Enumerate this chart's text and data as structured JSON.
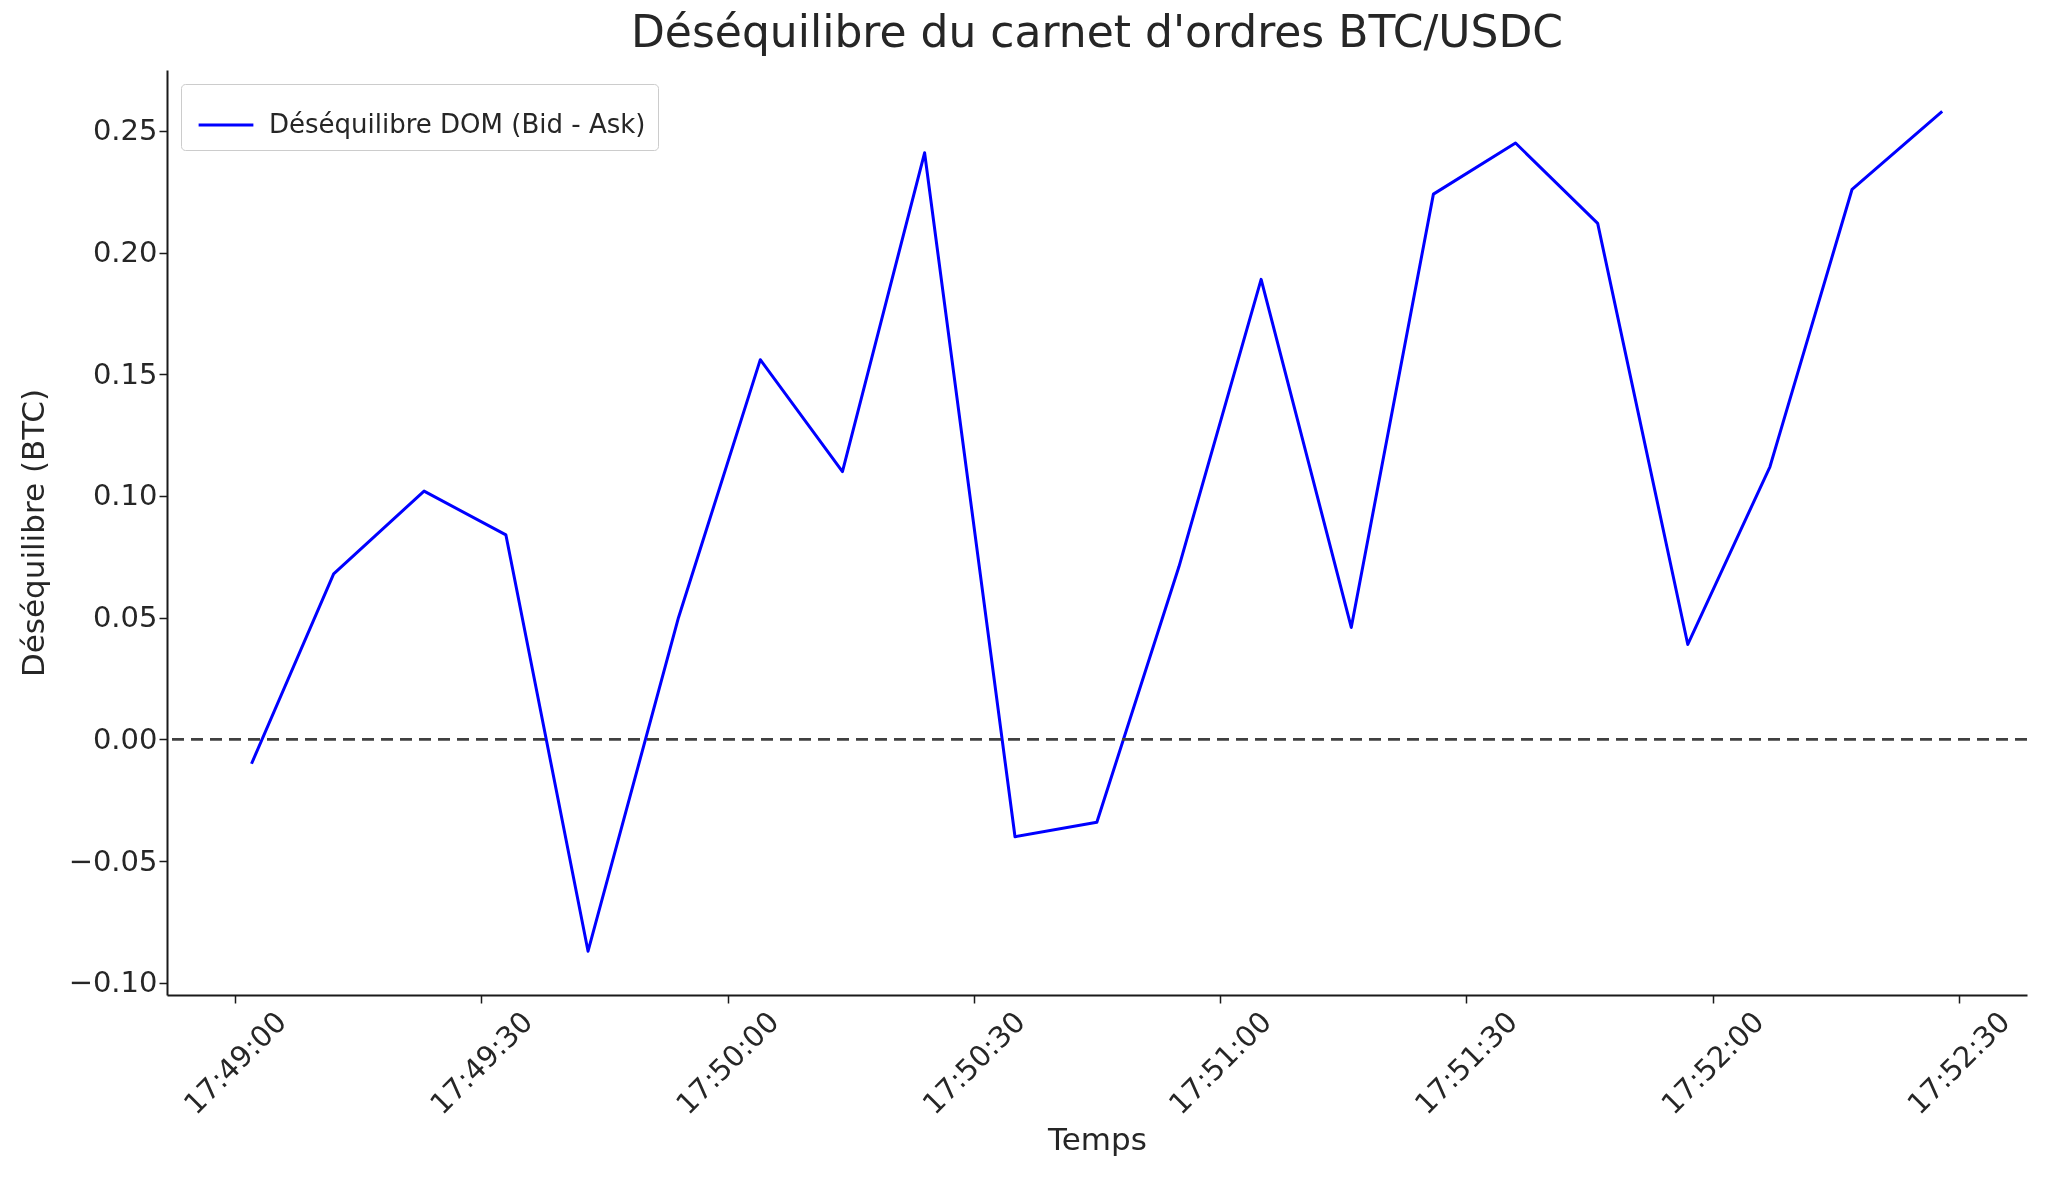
{
  "chart_data": {
    "type": "line",
    "title": "Déséquilibre du carnet d'ordres BTC/USDC",
    "xlabel": "Temps",
    "ylabel": "Déséquilibre (BTC)",
    "x": [
      17.81722,
      17.82,
      17.82306,
      17.82583,
      17.82861,
      17.83167,
      17.83444,
      17.83722,
      17.84,
      17.84306,
      17.84583,
      17.84861,
      17.85139,
      17.85444,
      17.85722,
      17.86,
      17.86278,
      17.86583,
      17.86861,
      17.87139,
      17.87444
    ],
    "series": [
      {
        "name": "Déséquilibre DOM (Bid - Ask)",
        "color": "#0000ff",
        "values": [
          -0.01,
          0.068,
          0.102,
          0.084,
          -0.087,
          0.05,
          0.156,
          0.11,
          0.241,
          -0.04,
          -0.034,
          0.071,
          0.189,
          0.046,
          0.224,
          0.245,
          0.212,
          0.039,
          0.112,
          0.226,
          0.258
        ]
      }
    ],
    "xlim": [
      17.81436,
      17.87731
    ],
    "xticks": [
      {
        "value": 17.81667,
        "label": "17:49:00"
      },
      {
        "value": 17.825,
        "label": "17:49:30"
      },
      {
        "value": 17.83333,
        "label": "17:50:00"
      },
      {
        "value": 17.84167,
        "label": "17:50:30"
      },
      {
        "value": 17.85,
        "label": "17:51:00"
      },
      {
        "value": 17.85833,
        "label": "17:51:30"
      },
      {
        "value": 17.86667,
        "label": "17:52:00"
      },
      {
        "value": 17.875,
        "label": "17:52:30"
      }
    ],
    "ylim": [
      -0.105,
      0.275
    ],
    "yticks": [
      {
        "value": -0.1,
        "label": "−0.10"
      },
      {
        "value": -0.05,
        "label": "−0.05"
      },
      {
        "value": 0,
        "label": "0.00"
      },
      {
        "value": 0.05,
        "label": "0.05"
      },
      {
        "value": 0.1,
        "label": "0.10"
      },
      {
        "value": 0.15,
        "label": "0.15"
      },
      {
        "value": 0.2,
        "label": "0.20"
      },
      {
        "value": 0.25,
        "label": "0.25"
      }
    ],
    "ref_lines": [
      {
        "axis": "y",
        "value": 0,
        "color": "#404040",
        "line_style": "dashed"
      }
    ],
    "legend": "top left",
    "grid": false
  }
}
